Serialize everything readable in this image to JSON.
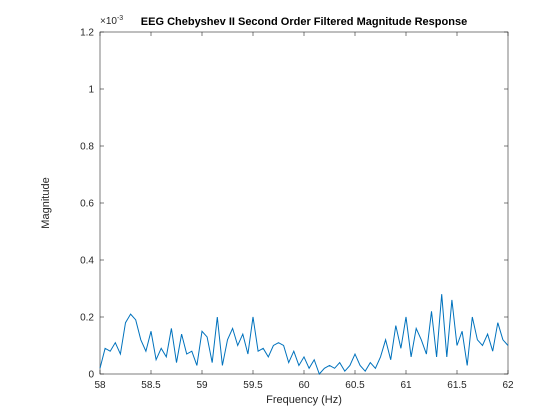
{
  "chart_data": {
    "type": "line",
    "title": "EEG Chebyshev II Second Order Filtered Magnitude Response",
    "x_label": "Frequency (Hz)",
    "y_label": "Magnitude",
    "y_multiplier": {
      "base": "×10",
      "exponent": "-3"
    },
    "x": [
      58,
      58.05,
      58.1,
      58.15,
      58.2,
      58.25,
      58.3,
      58.35,
      58.4,
      58.45,
      58.5,
      58.55,
      58.6,
      58.65,
      58.7,
      58.75,
      58.8,
      58.85,
      58.9,
      58.95,
      59,
      59.05,
      59.1,
      59.15,
      59.2,
      59.25,
      59.3,
      59.35,
      59.4,
      59.45,
      59.5,
      59.55,
      59.6,
      59.65,
      59.7,
      59.75,
      59.8,
      59.85,
      59.9,
      59.95,
      60,
      60.05,
      60.1,
      60.15,
      60.2,
      60.25,
      60.3,
      60.35,
      60.4,
      60.45,
      60.5,
      60.55,
      60.6,
      60.65,
      60.7,
      60.75,
      60.8,
      60.85,
      60.9,
      60.95,
      61,
      61.05,
      61.1,
      61.15,
      61.2,
      61.25,
      61.3,
      61.35,
      61.4,
      61.45,
      61.5,
      61.55,
      61.6,
      61.65,
      61.7,
      61.75,
      61.8,
      61.85,
      61.9,
      61.95,
      62
    ],
    "series": [
      {
        "name": "Magnitude",
        "color": "#0072bd",
        "values": [
          0.02,
          0.09,
          0.08,
          0.11,
          0.07,
          0.18,
          0.21,
          0.19,
          0.12,
          0.08,
          0.15,
          0.05,
          0.09,
          0.06,
          0.16,
          0.04,
          0.14,
          0.07,
          0.08,
          0.03,
          0.15,
          0.13,
          0.04,
          0.2,
          0.03,
          0.12,
          0.16,
          0.1,
          0.14,
          0.07,
          0.2,
          0.08,
          0.09,
          0.06,
          0.1,
          0.11,
          0.1,
          0.04,
          0.08,
          0.03,
          0.06,
          0.02,
          0.05,
          0.0,
          0.02,
          0.03,
          0.02,
          0.04,
          0.01,
          0.03,
          0.07,
          0.03,
          0.01,
          0.04,
          0.02,
          0.06,
          0.12,
          0.05,
          0.17,
          0.09,
          0.2,
          0.06,
          0.16,
          0.12,
          0.07,
          0.22,
          0.06,
          0.28,
          0.06,
          0.26,
          0.1,
          0.15,
          0.03,
          0.2,
          0.12,
          0.1,
          0.14,
          0.08,
          0.18,
          0.12,
          0.1
        ]
      }
    ],
    "xlim": [
      58,
      62
    ],
    "xticks": [
      58,
      58.5,
      59,
      59.5,
      60,
      60.5,
      61,
      61.5,
      62
    ],
    "ylim": [
      0,
      1.2
    ],
    "yticks": [
      0,
      0.2,
      0.4,
      0.6,
      0.8,
      1,
      1.2
    ]
  }
}
